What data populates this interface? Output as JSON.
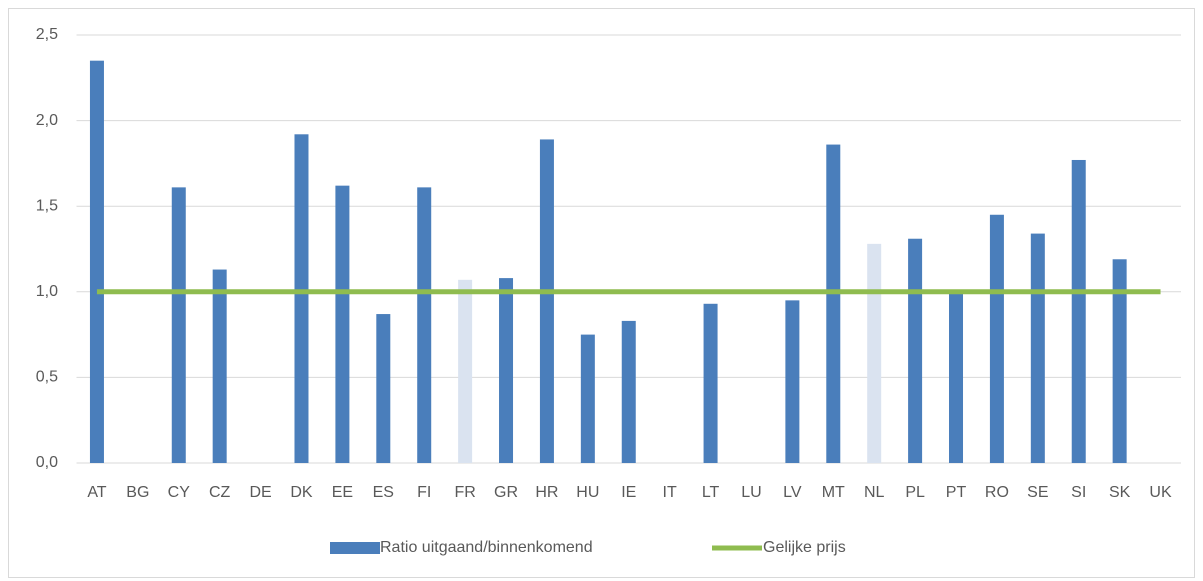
{
  "chart_data": {
    "type": "bar",
    "categories": [
      "AT",
      "BG",
      "CY",
      "CZ",
      "DE",
      "DK",
      "EE",
      "ES",
      "FI",
      "FR",
      "GR",
      "HR",
      "HU",
      "IE",
      "IT",
      "LT",
      "LU",
      "LV",
      "MT",
      "NL",
      "PL",
      "PT",
      "RO",
      "SE",
      "SI",
      "SK",
      "UK"
    ],
    "series": [
      {
        "name": "Ratio uitgaand/binnenkomend",
        "type": "bar",
        "color": "#4a7ebb",
        "values": [
          2.35,
          null,
          1.61,
          1.13,
          null,
          1.92,
          1.62,
          0.87,
          1.61,
          1.07,
          1.08,
          1.89,
          0.75,
          0.83,
          null,
          0.93,
          null,
          0.95,
          1.86,
          1.28,
          1.31,
          1.0,
          1.45,
          1.34,
          1.77,
          1.19,
          null
        ],
        "point_colors": [
          "#4a7ebb",
          "#4a7ebb",
          "#4a7ebb",
          "#4a7ebb",
          "#4a7ebb",
          "#4a7ebb",
          "#4a7ebb",
          "#4a7ebb",
          "#4a7ebb",
          "#dae3f0",
          "#4a7ebb",
          "#4a7ebb",
          "#4a7ebb",
          "#4a7ebb",
          "#4a7ebb",
          "#4a7ebb",
          "#4a7ebb",
          "#4a7ebb",
          "#4a7ebb",
          "#dae3f0",
          "#4a7ebb",
          "#4a7ebb",
          "#4a7ebb",
          "#4a7ebb",
          "#4a7ebb",
          "#4a7ebb",
          "#4a7ebb"
        ]
      },
      {
        "name": "Gelijke prijs",
        "type": "line",
        "color": "#8fbc4f",
        "values": [
          1,
          1,
          1,
          1,
          1,
          1,
          1,
          1,
          1,
          1,
          1,
          1,
          1,
          1,
          1,
          1,
          1,
          1,
          1,
          1,
          1,
          1,
          1,
          1,
          1,
          1,
          1
        ]
      }
    ],
    "ylim": [
      0,
      2.5
    ],
    "yticks": [
      {
        "value": 0,
        "label": "0,0"
      },
      {
        "value": 0.5,
        "label": "0,5"
      },
      {
        "value": 1,
        "label": "1,0"
      },
      {
        "value": 1.5,
        "label": "1,5"
      },
      {
        "value": 2,
        "label": "2,0"
      },
      {
        "value": 2.5,
        "label": "2,5"
      }
    ],
    "grid": true,
    "legend": "bottom"
  }
}
